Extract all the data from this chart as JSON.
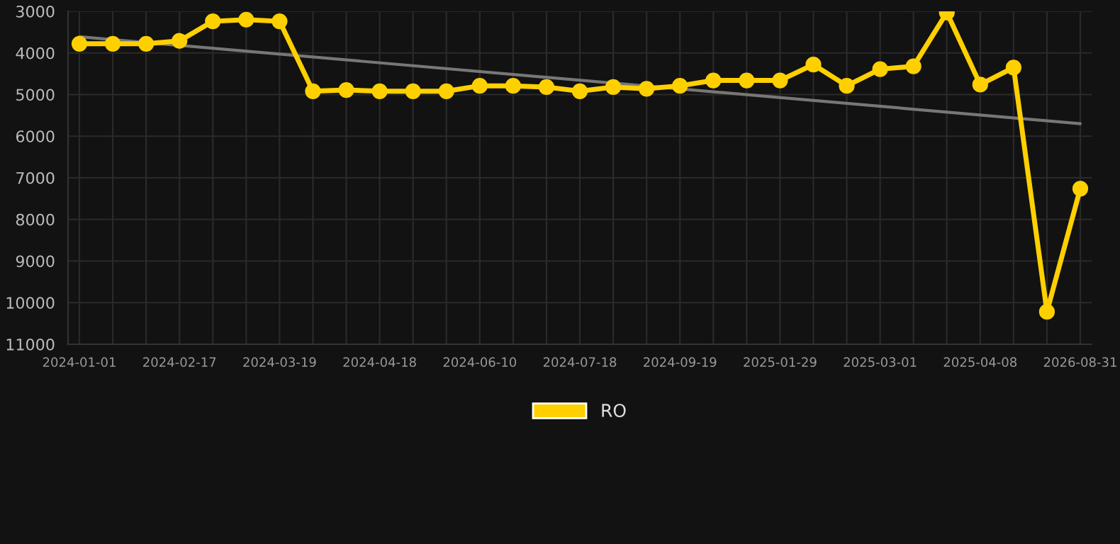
{
  "chart_data": {
    "type": "line",
    "categories": [
      "2024-01-01",
      null,
      null,
      "2024-02-17",
      null,
      null,
      "2024-03-19",
      null,
      null,
      "2024-04-18",
      null,
      null,
      "2024-06-10",
      null,
      null,
      "2024-07-18",
      null,
      null,
      "2024-09-19",
      null,
      null,
      "2025-01-29",
      null,
      null,
      "2025-03-01",
      null,
      null,
      "2025-04-08",
      null,
      null,
      "2026-08-31"
    ],
    "series": [
      {
        "name": "RO",
        "color": "#ffd000",
        "marker": "circle",
        "values": [
          3780,
          3780,
          3780,
          3710,
          3240,
          3200,
          3240,
          4920,
          4890,
          4920,
          4920,
          4920,
          4790,
          4790,
          4820,
          4920,
          4820,
          4860,
          4790,
          4660,
          4660,
          4660,
          4280,
          4790,
          4390,
          4320,
          3030,
          4760,
          4350,
          10220,
          7260
        ]
      },
      {
        "color": "#777777",
        "marker": "none",
        "values": [
          3610,
          null,
          null,
          null,
          null,
          null,
          null,
          null,
          null,
          null,
          null,
          null,
          null,
          null,
          null,
          null,
          null,
          null,
          null,
          null,
          null,
          null,
          null,
          null,
          null,
          null,
          null,
          null,
          null,
          null,
          5700
        ]
      }
    ],
    "ylim": [
      11000,
      3000
    ],
    "yticks": [
      3000,
      4000,
      5000,
      6000,
      7000,
      8000,
      9000,
      10000,
      11000
    ],
    "grid": true,
    "legend": "bottom",
    "line_style": "solid"
  }
}
